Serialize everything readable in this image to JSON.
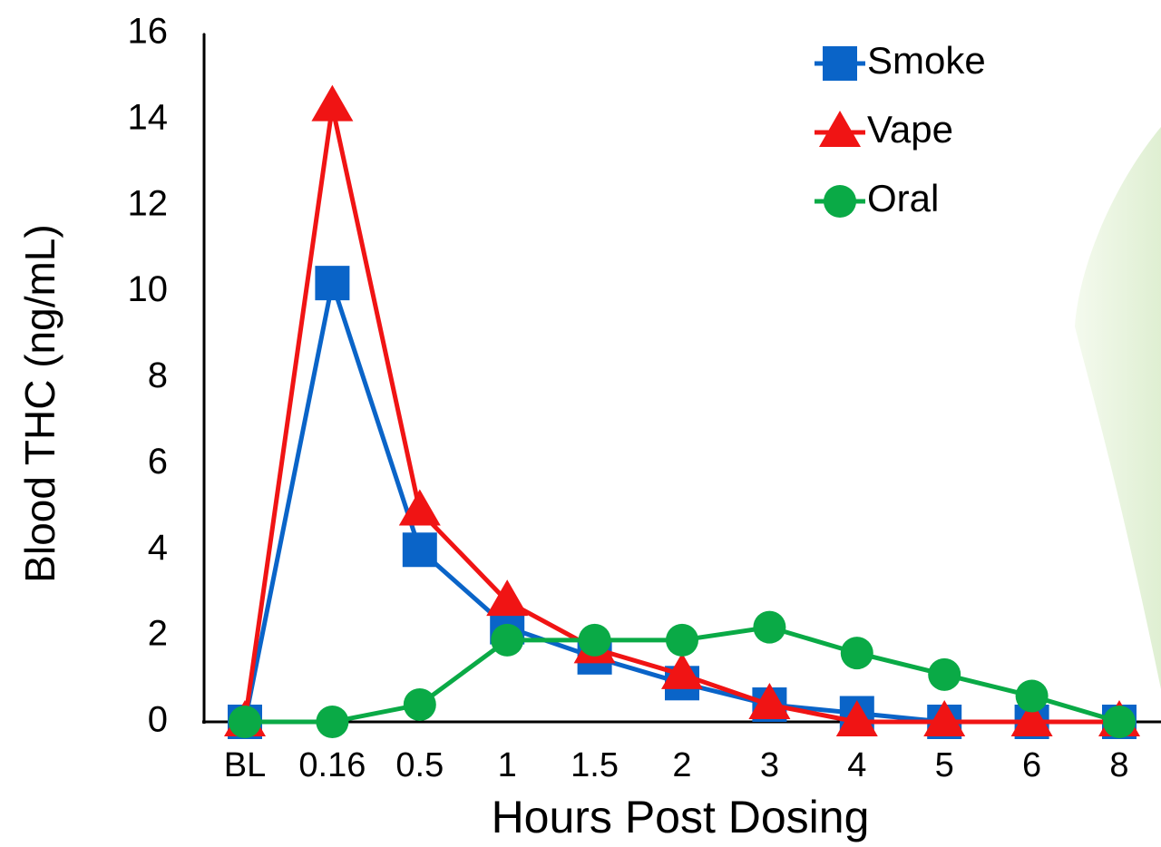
{
  "chart_data": {
    "type": "line",
    "x_label": "Hours Post Dosing",
    "y_label": "Blood THC (ng/mL)",
    "categories": [
      "BL",
      "0.16",
      "0.5",
      "1",
      "1.5",
      "2",
      "3",
      "4",
      "5",
      "6",
      "8"
    ],
    "series": [
      {
        "name": "Smoke",
        "color": "#0a64c8",
        "marker": "square",
        "values": [
          0,
          10.2,
          4.0,
          2.2,
          1.5,
          0.9,
          0.4,
          0.2,
          0,
          0,
          0
        ]
      },
      {
        "name": "Vape",
        "color": "#f01414",
        "marker": "triangle",
        "values": [
          0,
          14.3,
          4.9,
          2.8,
          1.7,
          1.1,
          0.4,
          0,
          0,
          0,
          0
        ]
      },
      {
        "name": "Oral",
        "color": "#0aaa46",
        "marker": "circle",
        "values": [
          0,
          0,
          0.4,
          1.9,
          1.9,
          1.9,
          2.2,
          1.6,
          1.1,
          0.6,
          0
        ]
      }
    ],
    "ylim": [
      0,
      16
    ],
    "yticks": [
      0,
      2,
      4,
      6,
      8,
      10,
      12,
      14,
      16
    ],
    "legend": "upper right",
    "grid": false
  }
}
